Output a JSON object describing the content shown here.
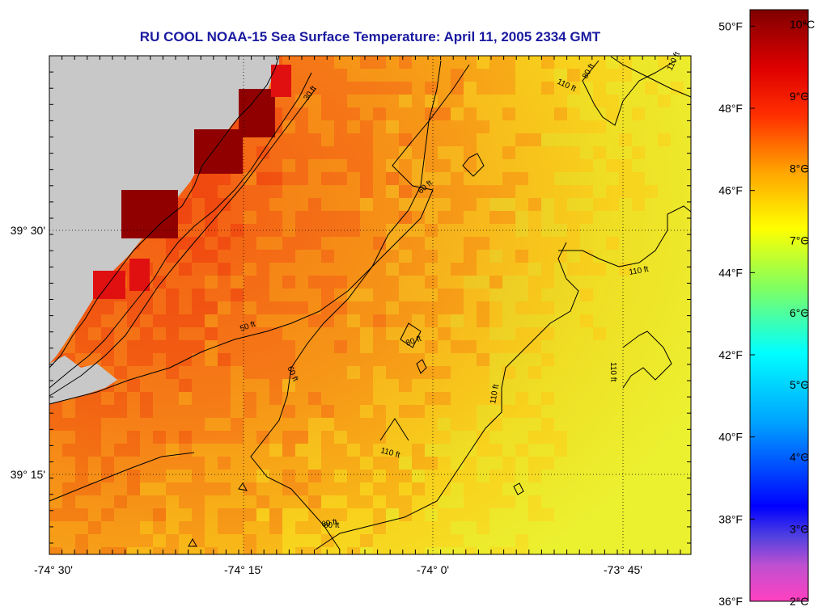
{
  "title": "RU COOL  NOAA-15  Sea Surface Temperature:  April 11, 2005 2334 GMT",
  "map": {
    "lon_ticks": [
      "-74° 30'",
      "-74° 15'",
      "-74° 0'",
      "-73° 45'"
    ],
    "lat_ticks": [
      "39° 30'",
      "39° 15'"
    ],
    "contour_labels": [
      {
        "text": "30 ft",
        "id": "c30a"
      },
      {
        "text": "50 ft",
        "id": "c50a"
      },
      {
        "text": "60 ft",
        "id": "c60a"
      },
      {
        "text": "60 ft",
        "id": "c60b"
      },
      {
        "text": "60 ft",
        "id": "c60c"
      },
      {
        "text": "80 ft",
        "id": "c80a"
      },
      {
        "text": "80 ft",
        "id": "c80b"
      },
      {
        "text": "80 ft",
        "id": "c80c"
      },
      {
        "text": "110 ft",
        "id": "c110a"
      },
      {
        "text": "110 ft",
        "id": "c110b"
      },
      {
        "text": "110 ft",
        "id": "c110c"
      },
      {
        "text": "110 ft",
        "id": "c110d"
      },
      {
        "text": "110 ft",
        "id": "c110e"
      },
      {
        "text": "110 ft",
        "id": "c110f"
      }
    ],
    "colors": {
      "land": "#c8c8c8",
      "ocean_warm": "#f05a10",
      "ocean_cool": "#f0f020"
    }
  },
  "colorbar": {
    "fahrenheit": [
      "50°F",
      "48°F",
      "46°F",
      "44°F",
      "42°F",
      "40°F",
      "38°F",
      "36°F"
    ],
    "celsius": [
      "10°C",
      "9°C",
      "8°C",
      "7°C",
      "6°C",
      "5°C",
      "4°C",
      "3°C",
      "2°C"
    ],
    "range_f": [
      36,
      50.4
    ],
    "range_c": [
      2,
      10.2
    ]
  }
}
